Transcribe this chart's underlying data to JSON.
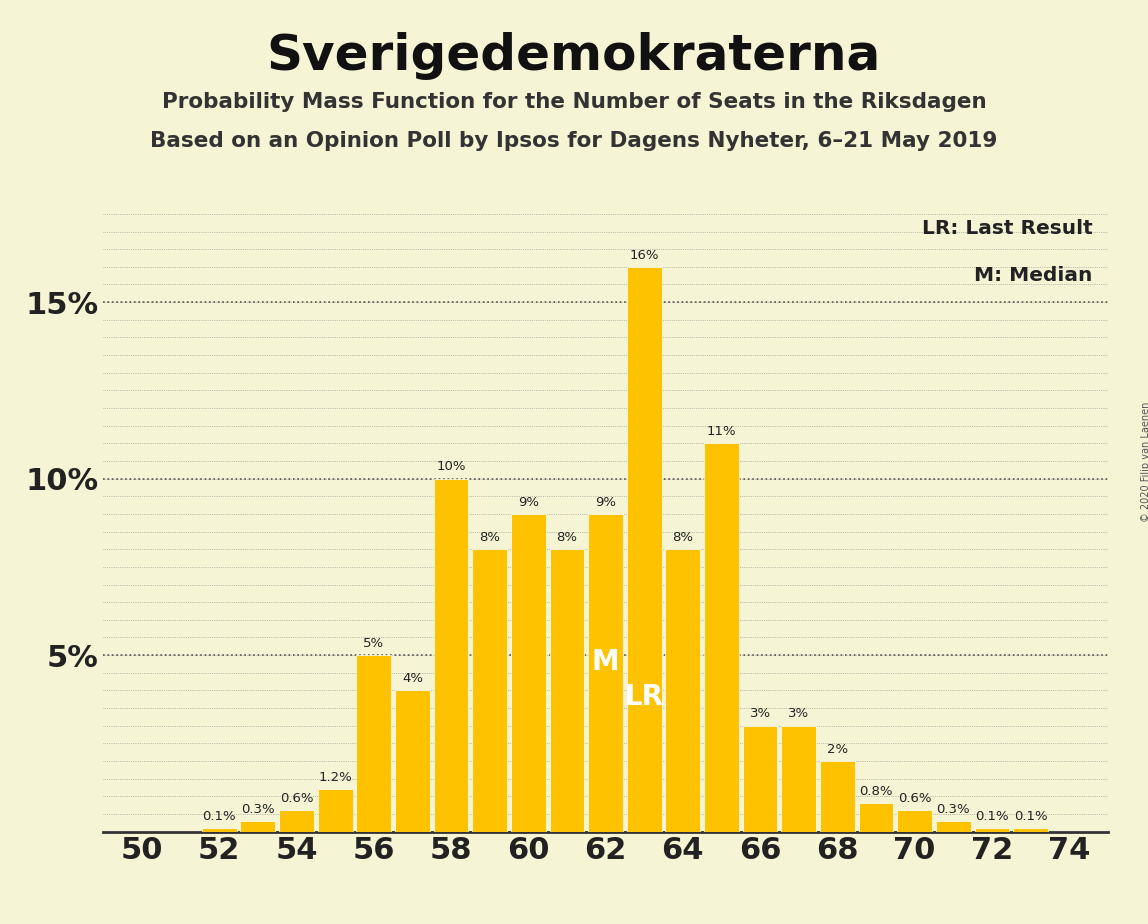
{
  "title": "Sverigedemokraterna",
  "subtitle1": "Probability Mass Function for the Number of Seats in the Riksdagen",
  "subtitle2": "Based on an Opinion Poll by Ipsos for Dagens Nyheter, 6–21 May 2019",
  "copyright": "© 2020 Filip van Laenen",
  "seats": [
    50,
    51,
    52,
    53,
    54,
    55,
    56,
    57,
    58,
    59,
    60,
    61,
    62,
    63,
    64,
    65,
    66,
    67,
    68,
    69,
    70,
    71,
    72,
    73,
    74
  ],
  "probabilities": [
    0.0,
    0.0,
    0.001,
    0.003,
    0.006,
    0.012,
    0.05,
    0.04,
    0.1,
    0.08,
    0.09,
    0.08,
    0.09,
    0.16,
    0.08,
    0.11,
    0.03,
    0.03,
    0.02,
    0.008,
    0.006,
    0.003,
    0.001,
    0.001,
    0.0
  ],
  "labels": [
    "0%",
    "0%",
    "0.1%",
    "0.3%",
    "0.6%",
    "1.2%",
    "5%",
    "4%",
    "10%",
    "8%",
    "9%",
    "8%",
    "9%",
    "16%",
    "8%",
    "11%",
    "3%",
    "3%",
    "2%",
    "0.8%",
    "0.6%",
    "0.3%",
    "0.1%",
    "0.1%",
    "0%"
  ],
  "bar_color": "#FFC200",
  "background_color": "#F5F5D5",
  "median_seat": 62,
  "lr_seat": 63,
  "median_label": "M",
  "lr_label": "LR",
  "legend_lr": "LR: Last Result",
  "legend_m": "M: Median",
  "ylim": [
    0,
    0.178
  ],
  "xlim": [
    49.0,
    75.0
  ],
  "xticks": [
    50,
    52,
    54,
    56,
    58,
    60,
    62,
    64,
    66,
    68,
    70,
    72,
    74
  ],
  "yticks": [
    0.0,
    0.05,
    0.1,
    0.15
  ],
  "ytick_labels": [
    "",
    "5%",
    "10%",
    "15%"
  ]
}
